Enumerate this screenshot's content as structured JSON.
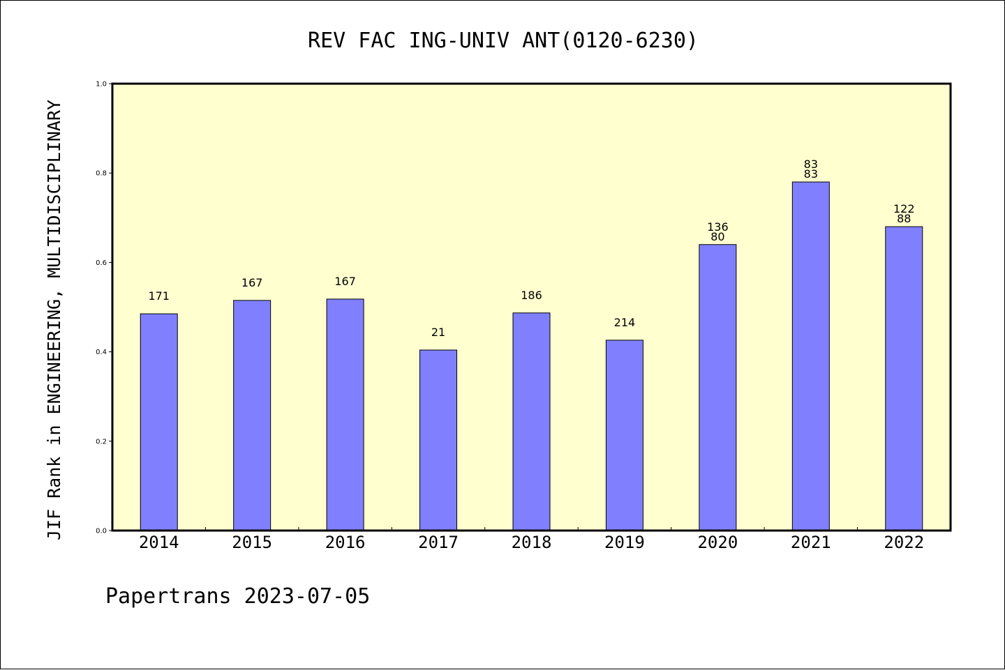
{
  "chart_data": {
    "type": "bar",
    "title": "REV FAC ING-UNIV ANT(0120-6230)",
    "ylabel": "JIF Rank in ENGINEERING, MULTIDISCIPLINARY",
    "xlabel": "",
    "ylim": [
      0,
      1.0
    ],
    "yticks": [
      "0.0",
      "0.2",
      "0.4",
      "0.6",
      "0.8",
      "1.0"
    ],
    "categories": [
      "2014",
      "2015",
      "2016",
      "2017",
      "2018",
      "2019",
      "2020",
      "2021",
      "2022"
    ],
    "values": [
      0.485,
      0.515,
      0.518,
      0.404,
      0.487,
      0.426,
      0.64,
      0.78,
      0.68
    ],
    "labels": [
      [
        "171"
      ],
      [
        "167"
      ],
      [
        "167"
      ],
      [
        "21"
      ],
      [
        "186"
      ],
      [
        "214"
      ],
      [
        "136",
        "80"
      ],
      [
        "83",
        "83"
      ],
      [
        "122",
        "88"
      ]
    ],
    "grid": false,
    "colors": {
      "bar": "#8080ff",
      "plot_bg": "#ffffd0",
      "axis": "#000000"
    }
  },
  "footer": "Papertrans 2023-07-05"
}
